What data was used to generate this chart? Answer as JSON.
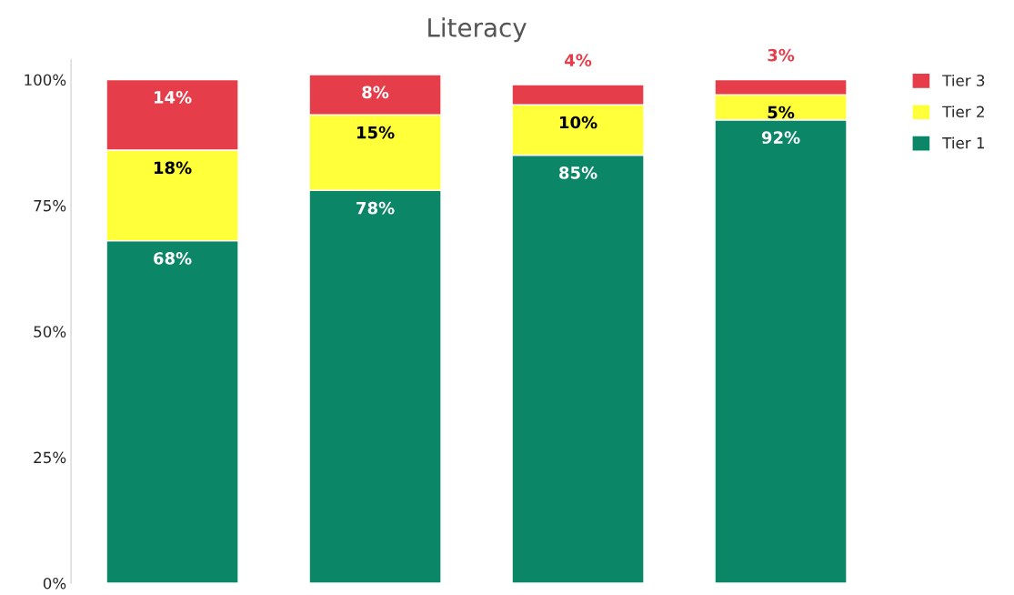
{
  "chart_data": {
    "type": "bar",
    "title": "Literacy",
    "stacked": true,
    "categories": [
      null,
      null,
      null,
      null
    ],
    "series": [
      {
        "name": "Tier 1",
        "color": "#0b8767",
        "values": [
          68,
          78,
          85,
          92
        ],
        "value_labels": [
          "68%",
          "78%",
          "85%",
          "92%"
        ]
      },
      {
        "name": "Tier 2",
        "color": "#ffff3a",
        "values": [
          18,
          15,
          10,
          5
        ],
        "value_labels": [
          "18%",
          "15%",
          "10%",
          "5%"
        ]
      },
      {
        "name": "Tier 3",
        "color": "#e53e4a",
        "values": [
          14,
          8,
          4,
          3
        ],
        "value_labels": [
          "14%",
          "8%",
          "4%",
          "3%"
        ]
      }
    ],
    "ylim": [
      0,
      104
    ],
    "yticks": [
      {
        "value": 0,
        "label": "0%"
      },
      {
        "value": 25,
        "label": "25%"
      },
      {
        "value": 50,
        "label": "50%"
      },
      {
        "value": 75,
        "label": "75%"
      },
      {
        "value": 100,
        "label": "100%"
      }
    ],
    "grid": false,
    "legend": "top right"
  }
}
